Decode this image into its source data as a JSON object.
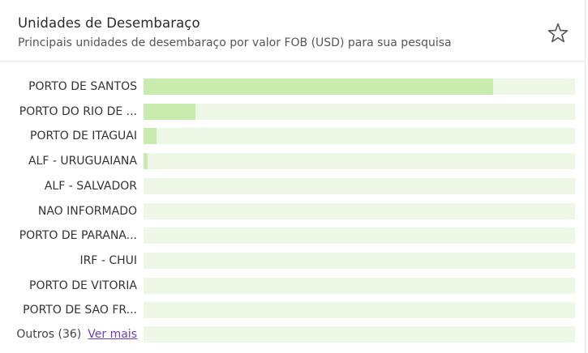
{
  "header": {
    "title": "Unidades de Desembaraço",
    "subtitle": "Principais unidades de desembaraço por valor FOB (USD) para sua pesquisa",
    "favorite_icon": "star-outline-icon"
  },
  "colors": {
    "bar_fill": "#c8ebae",
    "bar_track": "#eef7e6",
    "link": "#6b3fc2"
  },
  "chart_data": {
    "type": "bar",
    "orientation": "horizontal",
    "categories": [
      "PORTO DE SANTOS",
      "PORTO DO RIO DE ...",
      "PORTO DE ITAGUAI",
      "ALF - URUGUAIANA",
      "ALF - SALVADOR",
      "NAO INFORMADO",
      "PORTO DE PARANA...",
      "IRF - CHUI",
      "PORTO DE VITORIA",
      "PORTO DE SAO FR..."
    ],
    "values": [
      0.81,
      0.12,
      0.03,
      0.01,
      0,
      0,
      0,
      0,
      0,
      0
    ],
    "value_unit": "fraction of scale"
  },
  "footer": {
    "others_label": "Outros (36)",
    "see_more_label": "Ver mais"
  }
}
